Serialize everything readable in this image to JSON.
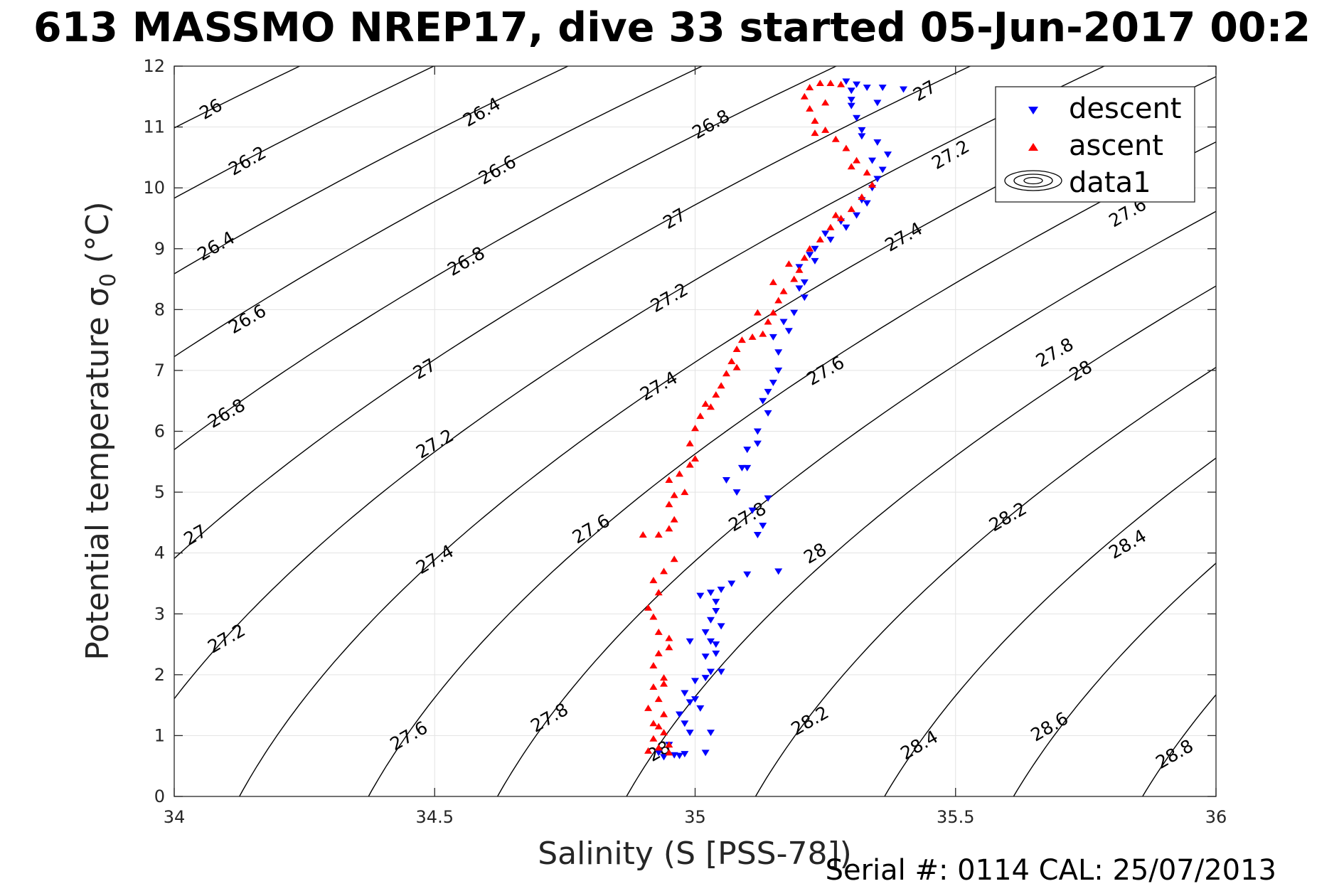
{
  "chart_data": {
    "type": "scatter",
    "title": "613 MASSMO NREP17, dive 33 started 05-Jun-2017 00:2",
    "xlabel": "Salinity (S [PSS-78])",
    "ylabel_main": "Potential temperature σ",
    "ylabel_sub": "0",
    "ylabel_unit": " (°C)",
    "xlim": [
      34,
      36
    ],
    "ylim": [
      0,
      12
    ],
    "xticks": [
      "34",
      "34.5",
      "35",
      "35.5",
      "36"
    ],
    "yticks": [
      "0",
      "1",
      "2",
      "3",
      "4",
      "5",
      "6",
      "7",
      "8",
      "9",
      "10",
      "11",
      "12"
    ],
    "grid": true,
    "legend": {
      "position": "top-right",
      "entries": [
        "descent",
        "ascent",
        "data1"
      ]
    },
    "contour_levels": [
      26,
      26.2,
      26.4,
      26.6,
      26.8,
      27,
      27.2,
      27.4,
      27.6,
      27.8,
      28,
      28.2,
      28.4,
      28.6,
      28.8
    ],
    "contour_labels": [
      {
        "text": "26",
        "s": 34.07,
        "t": 11.3
      },
      {
        "text": "26.2",
        "s": 34.14,
        "t": 10.45
      },
      {
        "text": "26.4",
        "s": 34.08,
        "t": 9.05
      },
      {
        "text": "26.6",
        "s": 34.14,
        "t": 7.85
      },
      {
        "text": "26.8",
        "s": 34.1,
        "t": 6.3
      },
      {
        "text": "27",
        "s": 34.04,
        "t": 4.3
      },
      {
        "text": "27.2",
        "s": 34.1,
        "t": 2.6
      },
      {
        "text": "26.4",
        "s": 34.59,
        "t": 11.25
      },
      {
        "text": "26.6",
        "s": 34.62,
        "t": 10.3
      },
      {
        "text": "26.8",
        "s": 34.56,
        "t": 8.8
      },
      {
        "text": "27",
        "s": 34.48,
        "t": 7.03
      },
      {
        "text": "27.2",
        "s": 34.5,
        "t": 5.8
      },
      {
        "text": "27.4",
        "s": 34.5,
        "t": 3.9
      },
      {
        "text": "27.6",
        "s": 34.45,
        "t": 1.0
      },
      {
        "text": "26.8",
        "s": 35.03,
        "t": 11.05
      },
      {
        "text": "27",
        "s": 34.96,
        "t": 9.5
      },
      {
        "text": "27.2",
        "s": 34.95,
        "t": 8.2
      },
      {
        "text": "27.4",
        "s": 34.93,
        "t": 6.75
      },
      {
        "text": "27.6",
        "s": 34.8,
        "t": 4.4
      },
      {
        "text": "27.8",
        "s": 34.72,
        "t": 1.3
      },
      {
        "text": "28",
        "s": 34.93,
        "t": 0.75
      },
      {
        "text": "27.8",
        "s": 35.1,
        "t": 4.6
      },
      {
        "text": "27",
        "s": 35.44,
        "t": 11.6
      },
      {
        "text": "27.2",
        "s": 35.49,
        "t": 10.55
      },
      {
        "text": "27.4",
        "s": 35.4,
        "t": 9.2
      },
      {
        "text": "27.6",
        "s": 35.25,
        "t": 7.0
      },
      {
        "text": "27.8",
        "s": 35.69,
        "t": 7.3
      },
      {
        "text": "27.6",
        "s": 35.83,
        "t": 9.6
      },
      {
        "text": "28",
        "s": 35.23,
        "t": 4.0
      },
      {
        "text": "28",
        "s": 35.74,
        "t": 7.0
      },
      {
        "text": "28.2",
        "s": 35.22,
        "t": 1.25
      },
      {
        "text": "28.2",
        "s": 35.6,
        "t": 4.6
      },
      {
        "text": "28.4",
        "s": 35.43,
        "t": 0.85
      },
      {
        "text": "28.4",
        "s": 35.83,
        "t": 4.15
      },
      {
        "text": "28.6",
        "s": 35.68,
        "t": 1.15
      },
      {
        "text": "28.8",
        "s": 35.92,
        "t": 0.7
      }
    ],
    "series": [
      {
        "name": "descent",
        "marker": "triangle-down",
        "color": "#0000FF",
        "points": [
          [
            34.94,
            0.65
          ],
          [
            34.96,
            0.68
          ],
          [
            34.93,
            0.72
          ],
          [
            34.98,
            0.7
          ],
          [
            35.02,
            0.72
          ],
          [
            34.99,
            1.05
          ],
          [
            35.03,
            1.05
          ],
          [
            34.97,
            1.35
          ],
          [
            34.99,
            1.55
          ],
          [
            35.01,
            1.45
          ],
          [
            34.98,
            1.7
          ],
          [
            35.0,
            1.9
          ],
          [
            35.03,
            2.05
          ],
          [
            35.02,
            2.3
          ],
          [
            35.04,
            2.5
          ],
          [
            35.05,
            2.8
          ],
          [
            34.99,
            2.55
          ],
          [
            35.02,
            2.7
          ],
          [
            35.05,
            2.05
          ],
          [
            35.03,
            2.55
          ],
          [
            35.04,
            3.05
          ],
          [
            35.01,
            3.3
          ],
          [
            35.03,
            3.35
          ],
          [
            35.05,
            3.4
          ],
          [
            35.07,
            3.5
          ],
          [
            35.1,
            3.65
          ],
          [
            35.16,
            3.7
          ],
          [
            35.12,
            4.3
          ],
          [
            35.13,
            4.45
          ],
          [
            35.14,
            4.9
          ],
          [
            35.11,
            4.7
          ],
          [
            35.08,
            5.0
          ],
          [
            35.06,
            5.2
          ],
          [
            35.1,
            5.4
          ],
          [
            35.1,
            5.7
          ],
          [
            35.12,
            6.0
          ],
          [
            35.14,
            6.3
          ],
          [
            35.13,
            6.5
          ],
          [
            35.15,
            6.8
          ],
          [
            35.16,
            7.0
          ],
          [
            35.16,
            7.3
          ],
          [
            35.15,
            7.55
          ],
          [
            35.17,
            7.8
          ],
          [
            35.19,
            7.95
          ],
          [
            35.21,
            8.2
          ],
          [
            35.21,
            8.45
          ],
          [
            35.2,
            8.7
          ],
          [
            35.23,
            8.8
          ],
          [
            35.23,
            9.0
          ],
          [
            35.26,
            9.15
          ],
          [
            35.29,
            9.35
          ],
          [
            35.31,
            9.55
          ],
          [
            35.33,
            9.75
          ],
          [
            35.34,
            10.0
          ],
          [
            35.36,
            10.3
          ],
          [
            35.37,
            10.55
          ],
          [
            35.35,
            10.75
          ],
          [
            35.32,
            10.95
          ],
          [
            35.31,
            11.15
          ],
          [
            35.3,
            11.35
          ],
          [
            35.3,
            11.6
          ],
          [
            35.29,
            11.75
          ],
          [
            35.31,
            11.7
          ],
          [
            35.33,
            11.65
          ],
          [
            35.36,
            11.65
          ],
          [
            35.4,
            11.62
          ],
          [
            35.3,
            11.45
          ],
          [
            35.35,
            11.4
          ],
          [
            35.32,
            10.85
          ],
          [
            35.34,
            10.45
          ],
          [
            35.35,
            10.15
          ],
          [
            35.32,
            9.8
          ],
          [
            35.28,
            9.45
          ],
          [
            35.25,
            9.25
          ],
          [
            35.22,
            8.9
          ],
          [
            35.2,
            8.35
          ],
          [
            35.18,
            7.65
          ],
          [
            35.14,
            6.65
          ],
          [
            35.12,
            5.8
          ],
          [
            35.09,
            5.4
          ],
          [
            35.04,
            3.2
          ],
          [
            35.03,
            2.9
          ],
          [
            35.04,
            2.35
          ],
          [
            35.02,
            1.95
          ],
          [
            35.0,
            1.6
          ],
          [
            34.98,
            1.2
          ],
          [
            34.95,
            0.85
          ],
          [
            34.97,
            0.67
          ]
        ]
      },
      {
        "name": "ascent",
        "marker": "triangle-up",
        "color": "#FF0000",
        "points": [
          [
            34.91,
            0.75
          ],
          [
            34.93,
            0.8
          ],
          [
            34.95,
            0.85
          ],
          [
            34.92,
            0.95
          ],
          [
            34.94,
            1.05
          ],
          [
            34.92,
            1.2
          ],
          [
            34.94,
            1.35
          ],
          [
            34.91,
            1.45
          ],
          [
            34.93,
            1.6
          ],
          [
            34.92,
            1.8
          ],
          [
            34.94,
            1.95
          ],
          [
            34.92,
            2.15
          ],
          [
            34.93,
            2.35
          ],
          [
            34.95,
            2.45
          ],
          [
            34.93,
            2.7
          ],
          [
            34.92,
            2.95
          ],
          [
            34.91,
            3.1
          ],
          [
            34.93,
            3.35
          ],
          [
            34.92,
            3.55
          ],
          [
            34.94,
            3.7
          ],
          [
            34.9,
            4.3
          ],
          [
            34.93,
            4.3
          ],
          [
            34.95,
            4.4
          ],
          [
            34.96,
            4.55
          ],
          [
            34.95,
            4.8
          ],
          [
            34.96,
            4.95
          ],
          [
            34.95,
            5.2
          ],
          [
            34.97,
            5.3
          ],
          [
            34.99,
            5.45
          ],
          [
            35.0,
            5.55
          ],
          [
            34.99,
            5.8
          ],
          [
            35.0,
            6.05
          ],
          [
            35.01,
            6.25
          ],
          [
            35.02,
            6.45
          ],
          [
            35.04,
            6.6
          ],
          [
            35.05,
            6.75
          ],
          [
            35.06,
            6.95
          ],
          [
            35.07,
            7.15
          ],
          [
            35.08,
            7.35
          ],
          [
            35.09,
            7.5
          ],
          [
            35.11,
            7.55
          ],
          [
            35.13,
            7.6
          ],
          [
            35.14,
            7.8
          ],
          [
            35.15,
            7.95
          ],
          [
            35.16,
            8.15
          ],
          [
            35.17,
            8.3
          ],
          [
            35.19,
            8.5
          ],
          [
            35.2,
            8.65
          ],
          [
            35.21,
            8.85
          ],
          [
            35.22,
            9.0
          ],
          [
            35.24,
            9.15
          ],
          [
            35.26,
            9.35
          ],
          [
            35.28,
            9.5
          ],
          [
            35.3,
            9.65
          ],
          [
            35.32,
            9.85
          ],
          [
            35.34,
            10.05
          ],
          [
            35.33,
            10.25
          ],
          [
            35.31,
            10.45
          ],
          [
            35.29,
            10.65
          ],
          [
            35.27,
            10.8
          ],
          [
            35.25,
            10.95
          ],
          [
            35.23,
            11.1
          ],
          [
            35.22,
            11.3
          ],
          [
            35.21,
            11.5
          ],
          [
            35.22,
            11.65
          ],
          [
            35.24,
            11.72
          ],
          [
            35.26,
            11.72
          ],
          [
            35.28,
            11.7
          ],
          [
            35.25,
            11.4
          ],
          [
            35.23,
            10.9
          ],
          [
            35.3,
            10.35
          ],
          [
            35.27,
            9.55
          ],
          [
            35.18,
            8.75
          ],
          [
            35.15,
            8.45
          ],
          [
            35.12,
            7.95
          ],
          [
            35.08,
            7.05
          ],
          [
            35.03,
            6.4
          ],
          [
            34.98,
            5.0
          ],
          [
            34.96,
            3.9
          ],
          [
            34.95,
            2.6
          ],
          [
            34.94,
            1.85
          ],
          [
            34.93,
            1.15
          ],
          [
            34.95,
            0.72
          ]
        ]
      }
    ]
  },
  "footer": {
    "serial_text": "Serial #: 0114  CAL: 25/07/2013"
  }
}
